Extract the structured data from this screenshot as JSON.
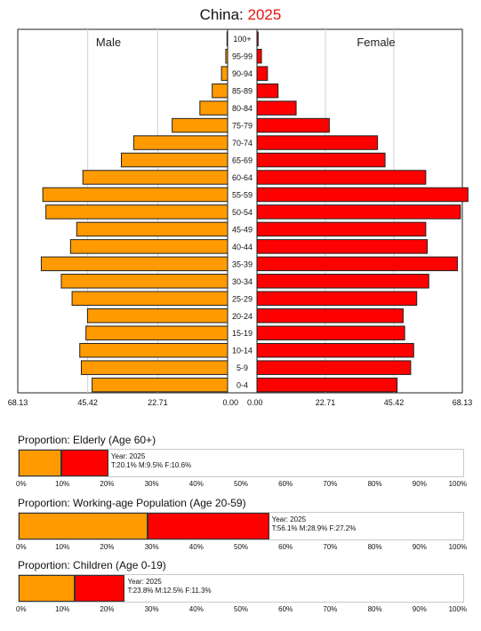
{
  "title": {
    "prefix": "China: ",
    "year": "2025"
  },
  "chart_data": {
    "type": "bar",
    "orientation": "horizontal",
    "title": "China: 2025",
    "categories": [
      "100+",
      "95-99",
      "90-94",
      "85-89",
      "80-84",
      "75-79",
      "70-74",
      "65-69",
      "60-64",
      "55-59",
      "50-54",
      "45-49",
      "40-44",
      "35-39",
      "30-34",
      "25-29",
      "20-24",
      "15-19",
      "10-14",
      "5-9",
      "0-4"
    ],
    "series": [
      {
        "name": "Male",
        "color": "#ff9a00",
        "values": [
          0.2,
          0.6,
          2.0,
          5.0,
          9.0,
          18.0,
          30.5,
          34.5,
          47.0,
          60.0,
          59.0,
          49.0,
          51.0,
          60.5,
          54.0,
          50.5,
          45.5,
          46.0,
          48.0,
          47.5,
          44.0
        ]
      },
      {
        "name": "Female",
        "color": "#ff0000",
        "values": [
          0.4,
          1.5,
          3.5,
          7.0,
          13.0,
          24.0,
          40.0,
          42.5,
          56.0,
          70.0,
          67.5,
          56.0,
          56.5,
          66.5,
          57.0,
          53.0,
          48.5,
          49.0,
          52.0,
          51.0,
          46.5
        ]
      }
    ],
    "xlim": [
      0,
      68.13
    ],
    "tick_labels_left": [
      "68.13",
      "45.42",
      "22.71",
      "0.00"
    ],
    "tick_labels_right": [
      "0.00",
      "22.71",
      "45.42",
      "68.13"
    ],
    "tick_values": [
      68.13,
      45.42,
      22.71,
      0
    ],
    "side_labels": {
      "left": "Male",
      "right": "Female"
    }
  },
  "proportions": [
    {
      "title": "Proportion: Elderly (Age 60+)",
      "year_label": "Year: 2025",
      "stats": "T:20.1%  M:9.5%  F:10.6%",
      "male": 9.5,
      "female": 10.6
    },
    {
      "title": "Proportion: Working-age Population (Age 20-59)",
      "year_label": "Year: 2025",
      "stats": "T:56.1%  M:28.9%  F:27.2%",
      "male": 28.9,
      "female": 27.2
    },
    {
      "title": "Proportion: Children (Age 0-19)",
      "year_label": "Year: 2025",
      "stats": "T:23.8%  M:12.5%  F:11.3%",
      "male": 12.5,
      "female": 11.3
    }
  ],
  "percent_ticks": [
    "0%",
    "10%",
    "20%",
    "30%",
    "40%",
    "50%",
    "60%",
    "70%",
    "80%",
    "90%",
    "100%"
  ]
}
